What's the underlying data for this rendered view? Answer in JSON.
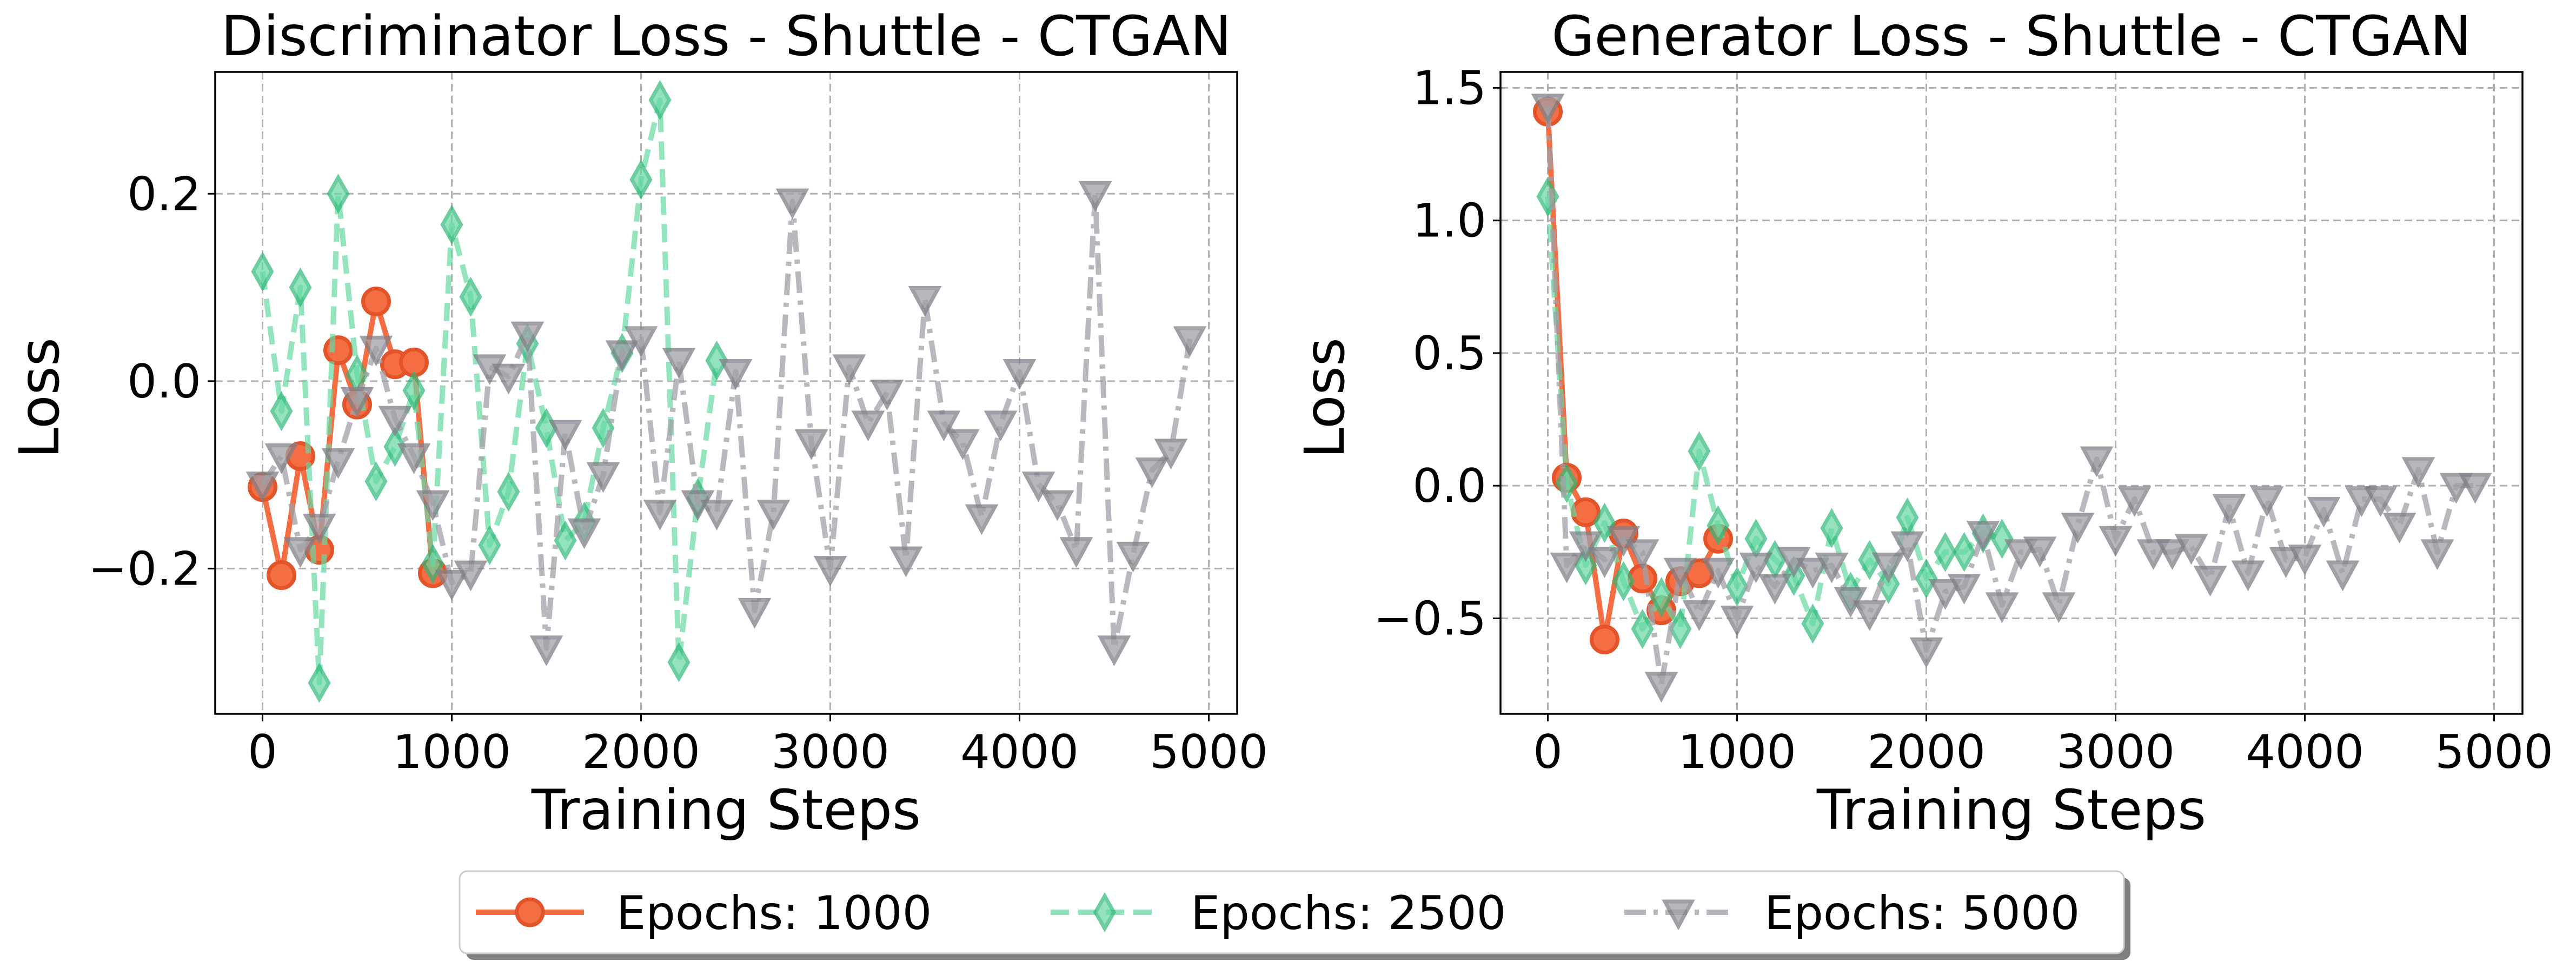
{
  "chart_data": [
    {
      "type": "line",
      "title": "Discriminator Loss - Shuttle - CTGAN",
      "xlabel": "Training Steps",
      "ylabel": "Loss",
      "xlim": [
        -250,
        5150
      ],
      "ylim": [
        -0.355,
        0.33
      ],
      "xticks": [
        0,
        1000,
        2000,
        3000,
        4000,
        5000
      ],
      "xtick_labels": [
        "0",
        "1000",
        "2000",
        "3000",
        "4000",
        "5000"
      ],
      "yticks": [
        -0.2,
        0.0,
        0.2
      ],
      "ytick_labels": [
        "−0.2",
        "0.0",
        "0.2"
      ],
      "grid": true,
      "series": [
        {
          "name": "Epochs: 1000",
          "x": [
            0,
            100,
            200,
            300,
            400,
            500,
            600,
            700,
            800,
            900
          ],
          "y": [
            -0.113,
            -0.207,
            -0.08,
            -0.18,
            0.033,
            -0.025,
            0.085,
            0.018,
            0.02,
            -0.205
          ]
        },
        {
          "name": "Epochs: 2500",
          "x": [
            0,
            100,
            200,
            300,
            400,
            500,
            600,
            700,
            800,
            900,
            1000,
            1100,
            1200,
            1300,
            1400,
            1500,
            1600,
            1700,
            1800,
            1900,
            2000,
            2100,
            2200,
            2300,
            2400
          ],
          "y": [
            0.117,
            -0.032,
            0.1,
            -0.322,
            0.2,
            0.007,
            -0.107,
            -0.07,
            -0.01,
            -0.195,
            0.167,
            0.09,
            -0.175,
            -0.118,
            0.04,
            -0.05,
            -0.17,
            -0.15,
            -0.05,
            0.03,
            0.215,
            0.3,
            -0.3,
            -0.125,
            0.022
          ]
        },
        {
          "name": "Epochs: 5000",
          "x": [
            0,
            100,
            200,
            300,
            400,
            500,
            600,
            700,
            800,
            900,
            1000,
            1100,
            1200,
            1300,
            1400,
            1500,
            1600,
            1700,
            1800,
            1900,
            2000,
            2100,
            2200,
            2300,
            2400,
            2500,
            2600,
            2700,
            2800,
            2900,
            3000,
            3100,
            3200,
            3300,
            3400,
            3500,
            3600,
            3700,
            3800,
            3900,
            4000,
            4100,
            4200,
            4300,
            4400,
            4500,
            4600,
            4700,
            4800,
            4900
          ],
          "y": [
            -0.11,
            -0.08,
            -0.18,
            -0.155,
            -0.085,
            -0.02,
            0.035,
            -0.04,
            -0.08,
            -0.13,
            -0.215,
            -0.205,
            0.015,
            0.005,
            0.05,
            -0.285,
            -0.055,
            -0.16,
            -0.1,
            0.03,
            0.045,
            -0.14,
            0.022,
            -0.13,
            -0.14,
            0.01,
            -0.245,
            -0.14,
            0.192,
            -0.065,
            -0.2,
            0.015,
            -0.045,
            -0.012,
            -0.19,
            0.088,
            -0.045,
            -0.065,
            -0.145,
            -0.045,
            0.01,
            -0.11,
            -0.13,
            -0.18,
            0.2,
            -0.285,
            -0.185,
            -0.095,
            -0.075,
            0.045
          ]
        }
      ]
    },
    {
      "type": "line",
      "title": "Generator Loss - Shuttle - CTGAN",
      "xlabel": "Training Steps",
      "ylabel": "Loss",
      "xlim": [
        -250,
        5150
      ],
      "ylim": [
        -0.86,
        1.56
      ],
      "xticks": [
        0,
        1000,
        2000,
        3000,
        4000,
        5000
      ],
      "xtick_labels": [
        "0",
        "1000",
        "2000",
        "3000",
        "4000",
        "5000"
      ],
      "yticks": [
        -0.5,
        0.0,
        0.5,
        1.0,
        1.5
      ],
      "ytick_labels": [
        "−0.5",
        "0.0",
        "0.5",
        "1.0",
        "1.5"
      ],
      "grid": true,
      "series": [
        {
          "name": "Epochs: 1000",
          "x": [
            0,
            100,
            200,
            300,
            400,
            500,
            600,
            700,
            800,
            900
          ],
          "y": [
            1.41,
            0.03,
            -0.1,
            -0.58,
            -0.18,
            -0.35,
            -0.47,
            -0.36,
            -0.33,
            -0.2
          ]
        },
        {
          "name": "Epochs: 2500",
          "x": [
            0,
            100,
            200,
            300,
            400,
            500,
            600,
            700,
            800,
            900,
            1000,
            1100,
            1200,
            1300,
            1400,
            1500,
            1600,
            1700,
            1800,
            1900,
            2000,
            2100,
            2200,
            2300,
            2400
          ],
          "y": [
            1.09,
            0.01,
            -0.3,
            -0.14,
            -0.36,
            -0.54,
            -0.42,
            -0.54,
            0.13,
            -0.15,
            -0.38,
            -0.2,
            -0.28,
            -0.34,
            -0.52,
            -0.16,
            -0.4,
            -0.28,
            -0.37,
            -0.12,
            -0.35,
            -0.25,
            -0.25,
            -0.18,
            -0.2
          ]
        },
        {
          "name": "Epochs: 5000",
          "x": [
            0,
            100,
            200,
            300,
            400,
            500,
            600,
            700,
            800,
            900,
            1000,
            1100,
            1200,
            1300,
            1400,
            1500,
            1600,
            1700,
            1800,
            1900,
            2000,
            2100,
            2200,
            2300,
            2400,
            2500,
            2600,
            2700,
            2800,
            2900,
            3000,
            3100,
            3200,
            3300,
            3400,
            3500,
            3600,
            3700,
            3800,
            3900,
            4000,
            4100,
            4200,
            4300,
            4400,
            4500,
            4600,
            4700,
            4800,
            4900
          ],
          "y": [
            1.43,
            -0.3,
            -0.22,
            -0.28,
            -0.2,
            -0.25,
            -0.75,
            -0.32,
            -0.48,
            -0.32,
            -0.5,
            -0.3,
            -0.38,
            -0.28,
            -0.32,
            -0.3,
            -0.43,
            -0.48,
            -0.3,
            -0.22,
            -0.62,
            -0.4,
            -0.38,
            -0.18,
            -0.45,
            -0.25,
            -0.24,
            -0.45,
            -0.15,
            0.1,
            -0.2,
            -0.05,
            -0.25,
            -0.25,
            -0.23,
            -0.35,
            -0.08,
            -0.33,
            -0.05,
            -0.28,
            -0.27,
            -0.09,
            -0.33,
            -0.05,
            -0.05,
            -0.15,
            0.06,
            -0.25,
            0.0,
            0.0
          ]
        }
      ]
    }
  ],
  "series_styles": [
    {
      "color": "#f46d43",
      "edge": "#e4542a",
      "marker": "circle",
      "dash": "solid",
      "opacity": 1.0
    },
    {
      "color": "#66d9a3",
      "edge": "#2fb878",
      "marker": "diamond",
      "dash": "dashed",
      "opacity": 0.7
    },
    {
      "color": "#a0a0a8",
      "edge": "#808088",
      "marker": "triangle-down",
      "dash": "dashdot",
      "opacity": 0.75
    }
  ],
  "legend": {
    "placement": "bottom-center",
    "entries": [
      "Epochs: 1000",
      "Epochs: 2500",
      "Epochs: 5000"
    ]
  }
}
